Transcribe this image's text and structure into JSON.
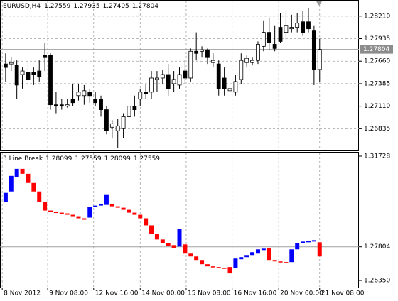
{
  "chart_data": [
    {
      "type": "candlestick",
      "title": "EURUSD,H4",
      "header_values": [
        1.27559,
        1.27935,
        1.27405,
        1.27804
      ],
      "open": [
        1.27626,
        1.27626,
        1.27609,
        1.27497,
        1.27523,
        1.27523,
        1.2754,
        1.27729,
        1.27729,
        1.27127,
        1.27127,
        1.2711,
        1.27196,
        1.27239,
        1.27239,
        1.27282,
        1.27196,
        1.27196,
        1.27067,
        1.26853,
        1.2681,
        1.26836,
        1.26982,
        1.2711,
        1.27196,
        1.27282,
        1.27282,
        1.27437,
        1.27454,
        1.27497,
        1.27385,
        1.27368,
        1.2754,
        1.27454,
        1.27781,
        1.27781,
        1.27798,
        1.27643,
        1.27626,
        1.27454,
        1.27299,
        1.27282,
        1.27437,
        1.27643,
        1.27643,
        1.27669,
        1.27841,
        1.28012,
        1.27866,
        1.28073,
        1.28012,
        1.28055,
        1.28073,
        1.28141,
        1.28141,
        1.28038,
        1.27559
      ],
      "high": [
        1.27755,
        1.27712,
        1.27669,
        1.27583,
        1.27643,
        1.27583,
        1.27669,
        1.27884,
        1.27755,
        1.27282,
        1.27196,
        1.27196,
        1.27385,
        1.27385,
        1.27368,
        1.27325,
        1.27282,
        1.27239,
        1.2711,
        1.26939,
        1.26956,
        1.27024,
        1.27196,
        1.27239,
        1.27325,
        1.27385,
        1.2754,
        1.2754,
        1.27557,
        1.27626,
        1.2754,
        1.27583,
        1.27669,
        1.27815,
        1.28012,
        1.27841,
        1.27815,
        1.27755,
        1.27669,
        1.27583,
        1.27368,
        1.27497,
        1.27755,
        1.27729,
        1.27712,
        1.27901,
        1.28158,
        1.28184,
        1.28098,
        1.28244,
        1.2827,
        1.28227,
        1.28244,
        1.2827,
        1.28313,
        1.28098,
        1.27935
      ],
      "low": [
        1.27411,
        1.2754,
        1.27196,
        1.27325,
        1.27368,
        1.27368,
        1.27411,
        1.2754,
        1.27067,
        1.27024,
        1.27067,
        1.27093,
        1.2711,
        1.27179,
        1.27127,
        1.27153,
        1.2711,
        1.26982,
        1.26767,
        1.26724,
        1.26595,
        1.26724,
        1.26939,
        1.26982,
        1.2711,
        1.27196,
        1.27196,
        1.27282,
        1.27385,
        1.27239,
        1.27282,
        1.27325,
        1.27385,
        1.27411,
        1.27669,
        1.27712,
        1.27626,
        1.27583,
        1.27239,
        1.27239,
        1.26939,
        1.27239,
        1.27385,
        1.27583,
        1.27609,
        1.27626,
        1.27781,
        1.27798,
        1.27781,
        1.27884,
        1.27925,
        1.28012,
        1.28012,
        1.27969,
        1.28012,
        1.27368,
        1.27405
      ],
      "close": [
        1.27583,
        1.27643,
        1.27368,
        1.2754,
        1.27437,
        1.27497,
        1.27471,
        1.27712,
        1.27127,
        1.2711,
        1.2711,
        1.27127,
        1.27153,
        1.27282,
        1.27299,
        1.27239,
        1.27153,
        1.27067,
        1.2681,
        1.26896,
        1.2687,
        1.26982,
        1.2711,
        1.27067,
        1.27282,
        1.27265,
        1.27454,
        1.27454,
        1.27497,
        1.27325,
        1.27437,
        1.27497,
        1.27454,
        1.27781,
        1.27755,
        1.27798,
        1.27712,
        1.27669,
        1.27325,
        1.27325,
        1.27325,
        1.27411,
        1.27669,
        1.27695,
        1.27669,
        1.27866,
        1.28012,
        1.27884,
        1.27815,
        1.27901,
        1.28098,
        1.28073,
        1.28124,
        1.28012,
        1.28055,
        1.27557,
        1.27804
      ],
      "up_color": "#ffffff",
      "down_color": "#000000",
      "ylim": [
        1.26578,
        1.28399
      ],
      "xlim": [
        -1,
        63
      ],
      "yticks": [
        {
          "value": 1.2821,
          "label": "1.28210"
        },
        1.27935,
        {
          "value": 1.2766,
          "label": "1.27660"
        },
        1.27385,
        {
          "value": 1.2711,
          "label": "1.27110"
        },
        1.26835
      ],
      "last_price": 1.27804,
      "grid": true
    },
    {
      "type": "line_break",
      "title": "3 Line Break",
      "header_values": [
        1.28099,
        1.27559,
        1.28099,
        1.27559
      ],
      "open": [
        1.29741,
        1.302,
        1.30811,
        1.31178,
        1.30964,
        1.30567,
        1.302,
        1.29741,
        1.29375,
        1.29314,
        1.29283,
        1.29252,
        1.29191,
        1.2913,
        1.29039,
        1.29069,
        1.29527,
        1.29589,
        1.29619,
        1.2965,
        1.29558,
        1.29497,
        1.29405,
        1.29283,
        1.29191,
        1.29039,
        1.28733,
        1.28366,
        1.28122,
        1.27969,
        1.27877,
        1.27816,
        1.27908,
        1.27511,
        1.27388,
        1.27235,
        1.27052,
        1.2696,
        1.2693,
        1.26899,
        1.2693,
        1.26899,
        1.27266,
        1.27358,
        1.27449,
        1.27511,
        1.27663,
        1.27755,
        1.27235,
        1.27174,
        1.27144,
        1.27144,
        1.27694,
        1.27969,
        1.27999,
        1.2803,
        1.27999
      ],
      "close": [
        1.30139,
        1.30872,
        1.31178,
        1.30964,
        1.30567,
        1.302,
        1.29741,
        1.29375,
        1.29314,
        1.29283,
        1.29252,
        1.29191,
        1.2913,
        1.29039,
        1.28977,
        1.29527,
        1.29589,
        1.2965,
        1.30078,
        1.29558,
        1.29497,
        1.29405,
        1.29283,
        1.29191,
        1.29039,
        1.28733,
        1.28366,
        1.28122,
        1.27969,
        1.27847,
        1.27755,
        1.2858,
        1.27511,
        1.27388,
        1.27235,
        1.27052,
        1.2696,
        1.2693,
        1.26899,
        1.26869,
        1.26655,
        1.27297,
        1.27358,
        1.27449,
        1.27572,
        1.27694,
        1.27724,
        1.27235,
        1.27174,
        1.27144,
        1.27113,
        1.27694,
        1.27969,
        1.2803,
        1.28061,
        1.28091,
        1.27388
      ],
      "up_color": "#0000ff",
      "down_color": "#ff0000",
      "ylim": [
        1.26044,
        1.31881
      ],
      "xlim": [
        -1,
        63
      ],
      "yticks": [
        1.31728,
        1.27804,
        {
          "value": 1.2635,
          "label": "1.26350"
        }
      ],
      "xticks": [
        {
          "value": -0.6,
          "label": "8 Nov 2012"
        },
        {
          "value": 7.5,
          "label": "9 Nov 08:00"
        },
        {
          "value": 15.7,
          "label": "12 Nov 16:00"
        },
        {
          "value": 24,
          "label": "14 Nov 00:00"
        },
        {
          "value": 32.2,
          "label": "15 Nov 08:00"
        },
        {
          "value": 40.4,
          "label": "16 Nov 16:00"
        },
        {
          "value": 48.7,
          "label": "20 Nov 00:00"
        },
        {
          "value": 56,
          "label": "21 Nov 08:00"
        }
      ]
    }
  ]
}
